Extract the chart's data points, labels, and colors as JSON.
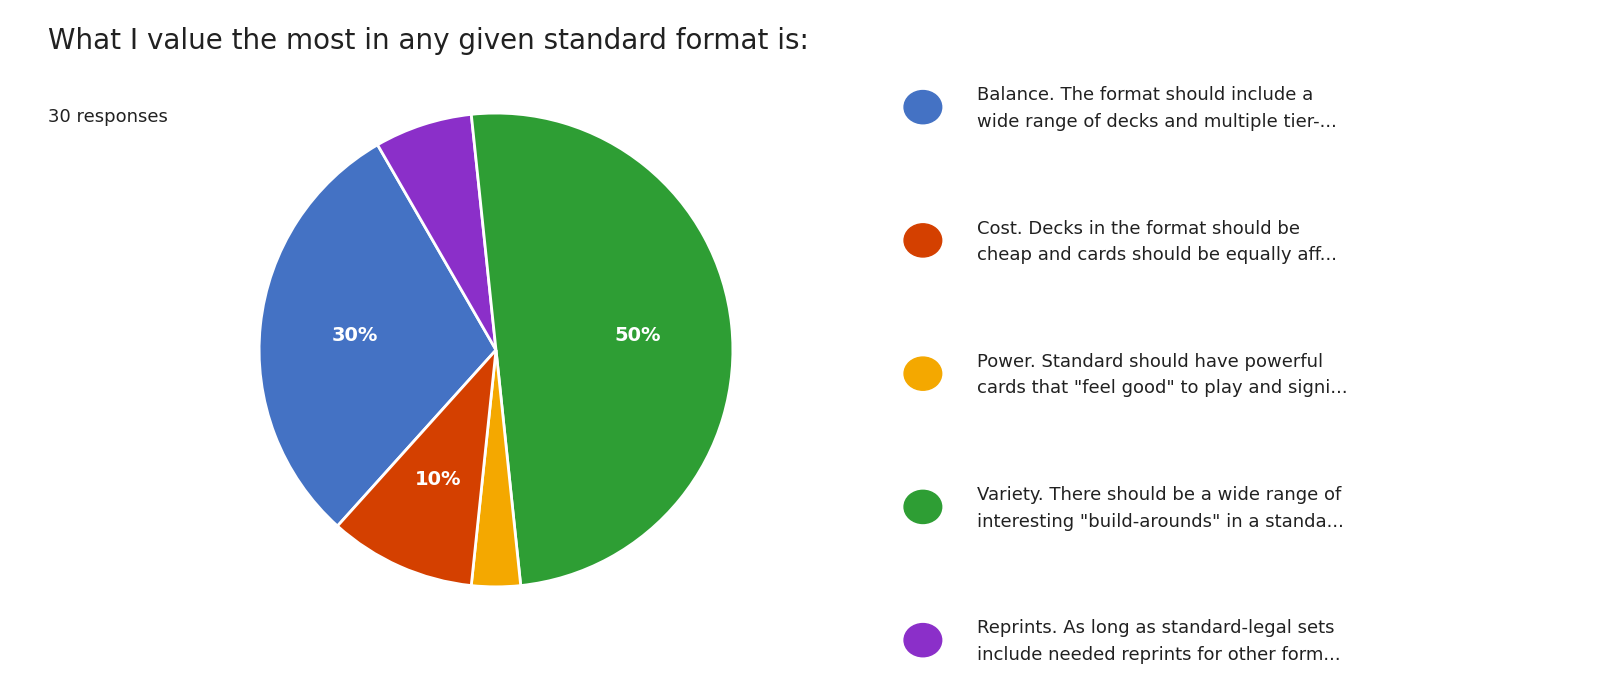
{
  "title": "What I value the most in any given standard format is:",
  "subtitle": "30 responses",
  "slices": [
    {
      "label": "Balance. The format should include a\nwide range of decks and multiple tier-...",
      "value": 30,
      "color": "#4472C4",
      "pct_label": "30%"
    },
    {
      "label": "Cost. Decks in the format should be\ncheap and cards should be equally aff...",
      "value": 10,
      "color": "#D44000",
      "pct_label": "10%"
    },
    {
      "label": "Power. Standard should have powerful\ncards that \"feel good\" to play and signi...",
      "value": 3.33,
      "color": "#F4A800",
      "pct_label": ""
    },
    {
      "label": "Variety. There should be a wide range of\ninteresting \"build-arounds\" in a standa...",
      "value": 50,
      "color": "#2E9E34",
      "pct_label": "50%"
    },
    {
      "label": "Reprints. As long as standard-legal sets\ninclude needed reprints for other form...",
      "value": 6.67,
      "color": "#8B2FC9",
      "pct_label": ""
    }
  ],
  "title_fontsize": 20,
  "subtitle_fontsize": 13,
  "pct_fontsize": 14,
  "legend_fontsize": 13,
  "bg_color": "#ffffff",
  "text_color": "#212121",
  "startangle": 162
}
